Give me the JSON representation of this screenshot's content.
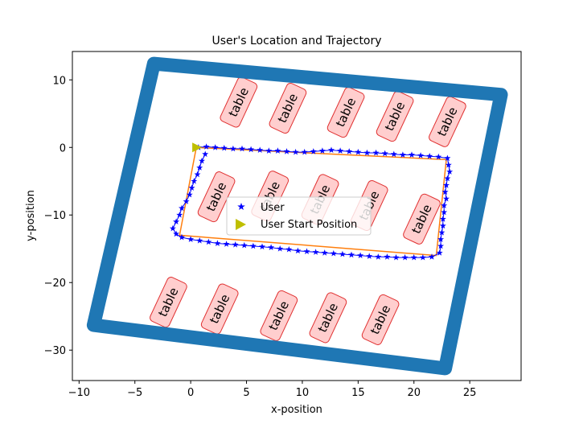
{
  "chart_data": {
    "type": "scatter",
    "title": "User's Location and Trajectory",
    "xlabel": "x-position",
    "ylabel": "y-position",
    "xlim": [
      -10.6,
      29.6
    ],
    "ylim": [
      -34.5,
      14.2
    ],
    "xticks": [
      -10,
      -5,
      0,
      5,
      10,
      15,
      20,
      25
    ],
    "yticks": [
      10,
      0,
      -10,
      -20,
      -30
    ],
    "grid": false,
    "legend": {
      "position": "center",
      "entries": [
        {
          "label": "User",
          "marker": "star",
          "color": "#0000ff"
        },
        {
          "label": "User Start Position",
          "marker": "triangle-right",
          "color": "#bfbf00"
        }
      ]
    },
    "boundary": {
      "color": "#1f77b4",
      "points": [
        [
          -3.3,
          12.4
        ],
        [
          27.8,
          7.8
        ],
        [
          22.8,
          -32.7
        ],
        [
          -8.7,
          -26.3
        ],
        [
          -3.3,
          12.4
        ]
      ]
    },
    "planned_path": {
      "color": "#ff7f0e",
      "points": [
        [
          0.5,
          0.0
        ],
        [
          22.9,
          -1.8
        ],
        [
          22.0,
          -16.0
        ],
        [
          -1.0,
          -13.0
        ],
        [
          0.5,
          0.0
        ]
      ]
    },
    "user_start": {
      "x": 0.5,
      "y": 0.0
    },
    "user_track": [
      [
        0.7,
        0.0
      ],
      [
        1.4,
        0.1
      ],
      [
        2.2,
        0.0
      ],
      [
        3.0,
        -0.1
      ],
      [
        3.8,
        -0.2
      ],
      [
        4.6,
        -0.2
      ],
      [
        5.4,
        -0.3
      ],
      [
        6.2,
        -0.4
      ],
      [
        7.0,
        -0.5
      ],
      [
        7.8,
        -0.5
      ],
      [
        8.6,
        -0.6
      ],
      [
        9.4,
        -0.7
      ],
      [
        10.2,
        -0.7
      ],
      [
        11.0,
        -0.6
      ],
      [
        11.8,
        -0.5
      ],
      [
        12.6,
        -0.4
      ],
      [
        13.4,
        -0.5
      ],
      [
        14.2,
        -0.6
      ],
      [
        15.0,
        -0.7
      ],
      [
        15.8,
        -0.8
      ],
      [
        16.6,
        -0.8
      ],
      [
        17.4,
        -0.9
      ],
      [
        18.2,
        -1.0
      ],
      [
        19.0,
        -1.1
      ],
      [
        19.8,
        -1.1
      ],
      [
        20.6,
        -1.2
      ],
      [
        21.4,
        -1.3
      ],
      [
        22.2,
        -1.4
      ],
      [
        23.0,
        -1.6
      ],
      [
        23.1,
        -2.6
      ],
      [
        23.2,
        -3.6
      ],
      [
        23.0,
        -4.6
      ],
      [
        22.9,
        -5.6
      ],
      [
        22.8,
        -6.6
      ],
      [
        22.9,
        -7.6
      ],
      [
        22.7,
        -8.6
      ],
      [
        22.7,
        -9.6
      ],
      [
        22.6,
        -10.6
      ],
      [
        22.6,
        -11.6
      ],
      [
        22.5,
        -12.6
      ],
      [
        22.4,
        -13.6
      ],
      [
        22.4,
        -14.6
      ],
      [
        22.3,
        -15.6
      ],
      [
        21.6,
        -16.2
      ],
      [
        20.8,
        -16.3
      ],
      [
        20.0,
        -16.3
      ],
      [
        19.2,
        -16.3
      ],
      [
        18.4,
        -16.3
      ],
      [
        17.6,
        -16.2
      ],
      [
        16.8,
        -16.2
      ],
      [
        16.0,
        -16.1
      ],
      [
        15.2,
        -16.0
      ],
      [
        14.4,
        -15.9
      ],
      [
        13.6,
        -15.8
      ],
      [
        12.8,
        -15.7
      ],
      [
        12.0,
        -15.6
      ],
      [
        11.2,
        -15.5
      ],
      [
        10.4,
        -15.4
      ],
      [
        9.6,
        -15.3
      ],
      [
        8.8,
        -15.1
      ],
      [
        8.0,
        -15.0
      ],
      [
        7.2,
        -14.8
      ],
      [
        6.4,
        -14.7
      ],
      [
        5.6,
        -14.6
      ],
      [
        4.8,
        -14.5
      ],
      [
        4.0,
        -14.4
      ],
      [
        3.2,
        -14.3
      ],
      [
        2.4,
        -14.2
      ],
      [
        1.6,
        -14.0
      ],
      [
        0.8,
        -13.8
      ],
      [
        0.0,
        -13.6
      ],
      [
        -0.8,
        -13.3
      ],
      [
        -1.3,
        -12.8
      ],
      [
        -1.6,
        -12.0
      ],
      [
        -1.3,
        -11.0
      ],
      [
        -1.0,
        -10.0
      ],
      [
        -0.8,
        -9.0
      ],
      [
        -0.4,
        -8.0
      ],
      [
        -0.1,
        -7.0
      ],
      [
        0.1,
        -6.0
      ],
      [
        0.3,
        -5.0
      ],
      [
        0.6,
        -4.0
      ],
      [
        0.8,
        -3.0
      ],
      [
        1.0,
        -2.0
      ],
      [
        1.3,
        -1.0
      ]
    ],
    "tables": [
      {
        "label": "table",
        "x": 4.3,
        "y": 6.7,
        "angle": -65
      },
      {
        "label": "table",
        "x": 8.7,
        "y": 5.8,
        "angle": -65
      },
      {
        "label": "table",
        "x": 13.9,
        "y": 5.2,
        "angle": -65
      },
      {
        "label": "table",
        "x": 18.3,
        "y": 4.6,
        "angle": -65
      },
      {
        "label": "table",
        "x": 23.0,
        "y": 3.8,
        "angle": -65
      },
      {
        "label": "table",
        "x": 2.3,
        "y": -7.3,
        "angle": -65
      },
      {
        "label": "table",
        "x": 7.1,
        "y": -7.2,
        "angle": -65
      },
      {
        "label": "table",
        "x": 11.6,
        "y": -7.7,
        "angle": -65
      },
      {
        "label": "table",
        "x": 16.0,
        "y": -8.6,
        "angle": -65
      },
      {
        "label": "table",
        "x": 20.7,
        "y": -10.6,
        "angle": -65
      },
      {
        "label": "table",
        "x": -2.0,
        "y": -22.9,
        "angle": -65
      },
      {
        "label": "table",
        "x": 2.6,
        "y": -23.9,
        "angle": -65
      },
      {
        "label": "table",
        "x": 7.9,
        "y": -24.9,
        "angle": -65
      },
      {
        "label": "table",
        "x": 12.3,
        "y": -25.2,
        "angle": -65
      },
      {
        "label": "table",
        "x": 17.0,
        "y": -25.5,
        "angle": -65
      }
    ],
    "table_style": {
      "fill": "#ff9d9d",
      "stroke": "#e03030"
    }
  }
}
